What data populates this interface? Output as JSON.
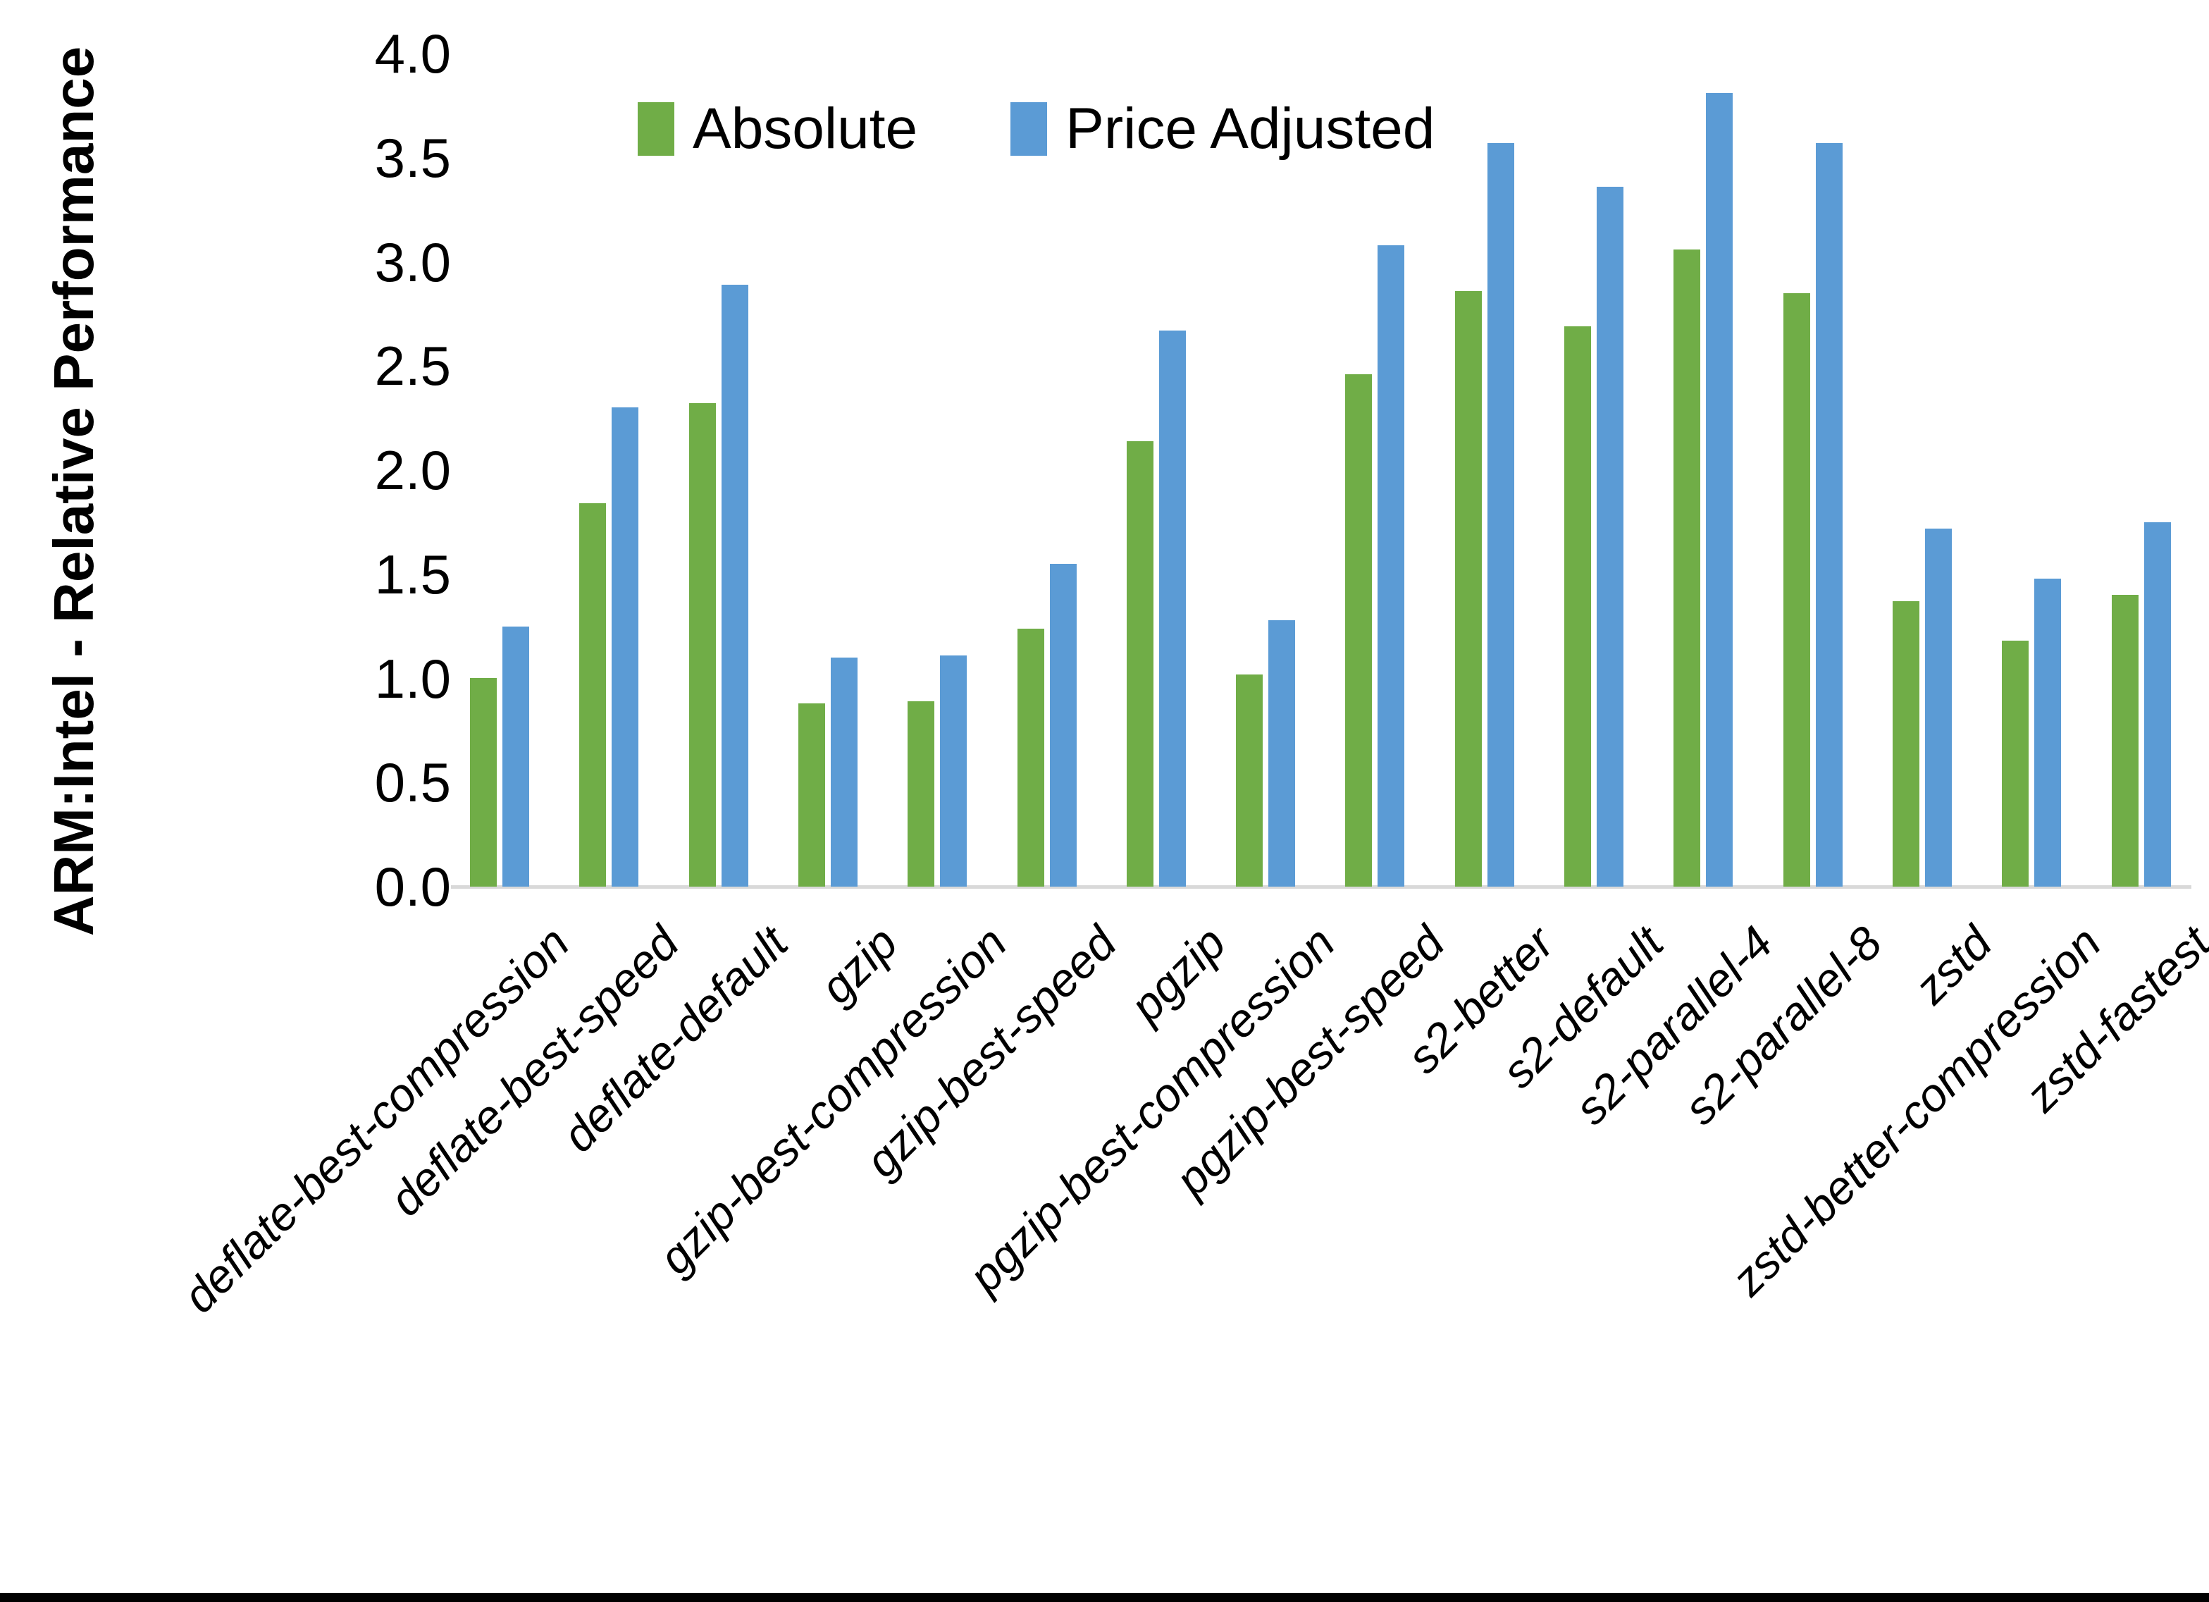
{
  "figure": {
    "ylabel": "ARM:Intel - Relative Performance",
    "ytick_labels": [
      "4.0",
      "3.5",
      "3.0",
      "2.5",
      "2.0",
      "1.5",
      "1.0",
      "0.5",
      "0.0"
    ]
  },
  "chart_data": {
    "type": "bar",
    "title": "",
    "xlabel": "",
    "ylabel": "ARM:Intel - Relative Performance",
    "categories": [
      "deflate-best-compression",
      "deflate-best-speed",
      "deflate-default",
      "gzip",
      "gzip-best-compression",
      "gzip-best-speed",
      "pgzip",
      "pgzip-best-compression",
      "pgzip-best-speed",
      "s2-better",
      "s2-default",
      "s2-parallel-4",
      "s2-parallel-8",
      "zstd",
      "zstd-better-compression",
      "zstd-fastest"
    ],
    "series": [
      {
        "name": "Absolute",
        "color": "#70AD47",
        "values": [
          1.0,
          1.84,
          2.32,
          0.88,
          0.89,
          1.24,
          2.14,
          1.02,
          2.46,
          2.86,
          2.69,
          3.06,
          2.85,
          1.37,
          1.18,
          1.4
        ]
      },
      {
        "name": "Price Adjusted",
        "color": "#5B9BD5",
        "values": [
          1.25,
          2.3,
          2.89,
          1.1,
          1.11,
          1.55,
          2.67,
          1.28,
          3.08,
          3.57,
          3.36,
          3.81,
          3.57,
          1.72,
          1.48,
          1.75
        ]
      }
    ],
    "ylim": [
      0.0,
      4.0
    ],
    "ytick_step": 0.5,
    "grid": false,
    "legend_position": "top-center",
    "bar_colors": {
      "absolute": "#70AD47",
      "price_adjusted": "#5B9BD5"
    },
    "axis_line_color": "#d9d9d9"
  }
}
